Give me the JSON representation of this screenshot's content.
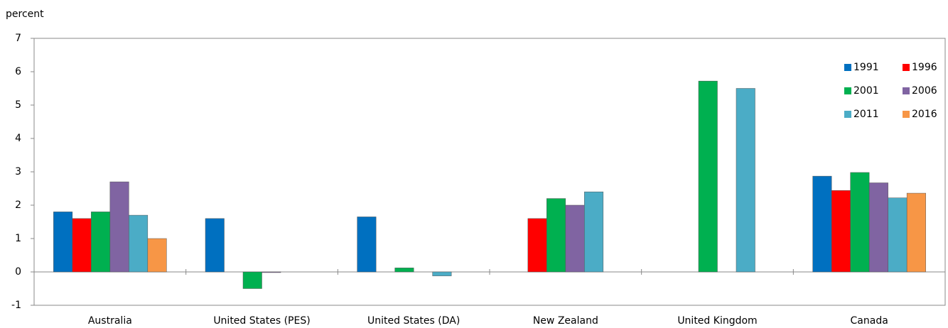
{
  "chart_data": {
    "type": "bar",
    "y_label": "percent",
    "categories": [
      "Australia",
      "United States (PES)",
      "United States (DA)",
      "New Zealand",
      "United Kingdom",
      "Canada"
    ],
    "series": [
      {
        "name": "1991",
        "color": "#0070c0",
        "values": [
          1.8,
          1.6,
          1.65,
          null,
          null,
          2.87
        ]
      },
      {
        "name": "1996",
        "color": "#ff0000",
        "values": [
          1.6,
          null,
          null,
          1.6,
          null,
          2.44
        ]
      },
      {
        "name": "2001",
        "color": "#00b050",
        "values": [
          1.8,
          -0.5,
          0.12,
          2.2,
          5.72,
          2.98
        ]
      },
      {
        "name": "2006",
        "color": "#8064a2",
        "values": [
          2.7,
          -0.02,
          null,
          2.0,
          null,
          2.67
        ]
      },
      {
        "name": "2011",
        "color": "#4bacc6",
        "values": [
          1.7,
          null,
          -0.12,
          2.4,
          5.5,
          2.22
        ]
      },
      {
        "name": "2016",
        "color": "#f79646",
        "values": [
          1.0,
          null,
          null,
          null,
          null,
          2.36
        ]
      }
    ],
    "ylim": [
      -1,
      7
    ],
    "yticks": [
      -1,
      0,
      1,
      2,
      3,
      4,
      5,
      6,
      7
    ],
    "grid": false,
    "legend": "upper right"
  }
}
